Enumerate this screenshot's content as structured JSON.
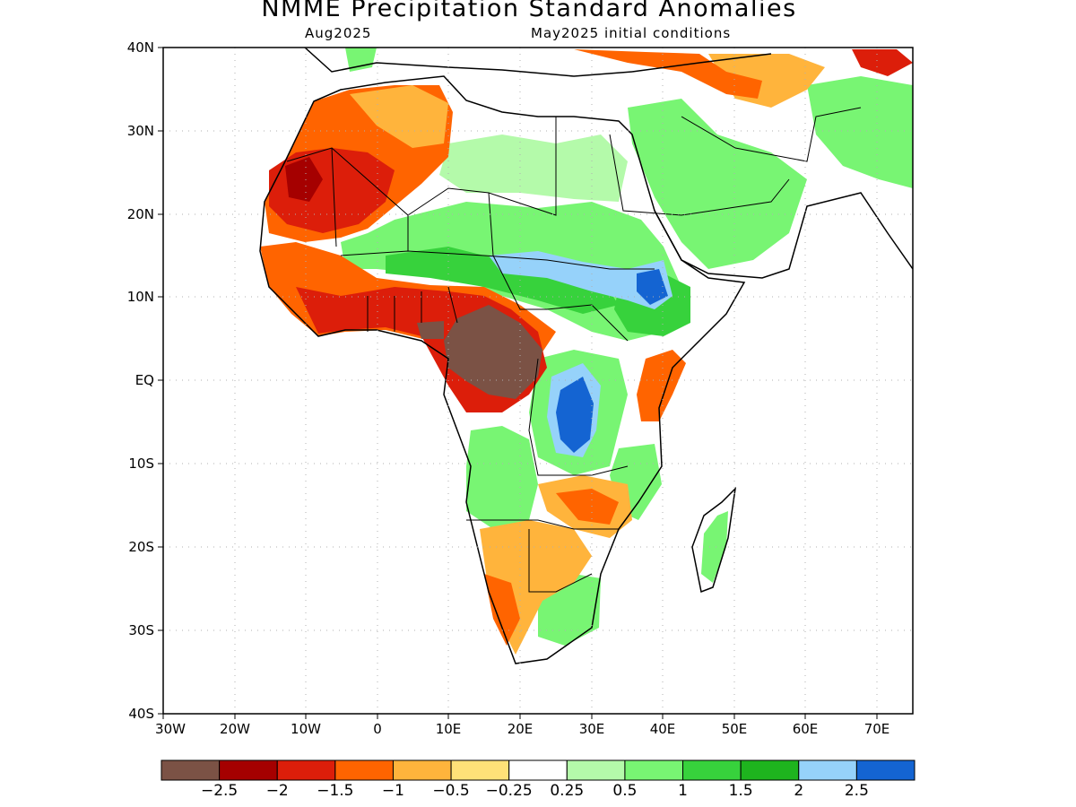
{
  "map": {
    "title": "NMME Precipitation Standard Anomalies",
    "subtitle_left": "Aug2025",
    "subtitle_right": "May2025 initial conditions",
    "lat_labels": [
      "40N",
      "30N",
      "20N",
      "10N",
      "EQ",
      "10S",
      "20S",
      "30S",
      "40S"
    ],
    "lon_labels": [
      "30W",
      "20W",
      "10W",
      "0",
      "10E",
      "20E",
      "30E",
      "40E",
      "50E",
      "60E",
      "70E"
    ],
    "extent": {
      "lon_min": -30,
      "lon_max": 75,
      "lat_min": -40,
      "lat_max": 40
    }
  },
  "colorbar": {
    "colors": [
      "#7b5245",
      "#a50000",
      "#dc1e0a",
      "#ff6400",
      "#ffb43c",
      "#ffe178",
      "#ffffff",
      "#b4faaa",
      "#78f573",
      "#37d23c",
      "#1eb41e",
      "#96d2fa",
      "#1464d2"
    ],
    "labels": [
      "−2.5",
      "−2",
      "−1.5",
      "−1",
      "−0.5",
      "−0.25",
      "0.25",
      "0.5",
      "1",
      "1.5",
      "2",
      "2.5"
    ]
  }
}
